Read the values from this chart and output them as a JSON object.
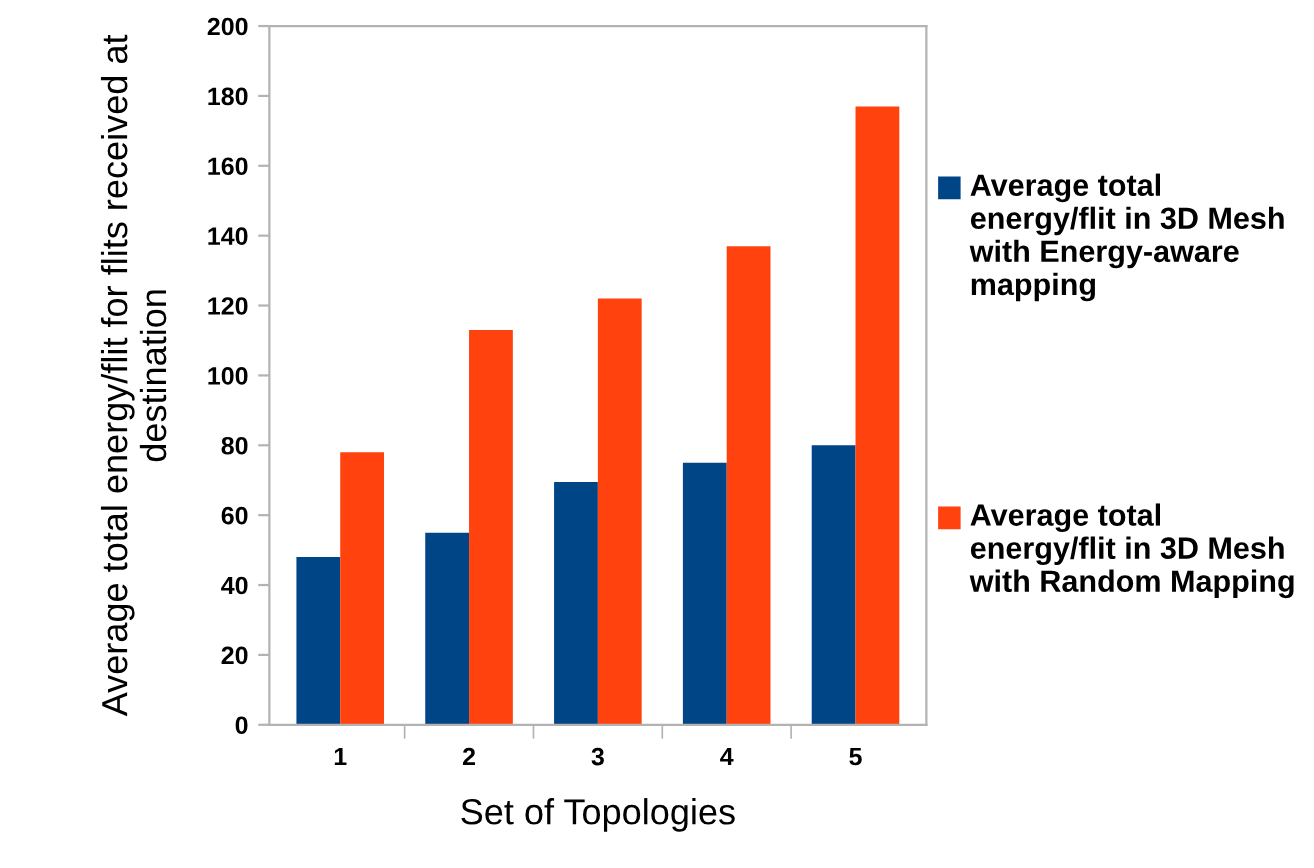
{
  "chart_data": {
    "type": "bar",
    "xlabel": "Set of Topologies",
    "ylabel": "Average total energy/flit for flits received at destination",
    "categories": [
      "1",
      "2",
      "3",
      "4",
      "5"
    ],
    "series": [
      {
        "name": "Average total energy/flit in 3D Mesh with Energy-aware mapping",
        "color": "#004586",
        "values": [
          48,
          55,
          69.5,
          75,
          80
        ]
      },
      {
        "name": "Average total energy/flit in 3D Mesh with Random Mapping",
        "color": "#ff420e",
        "values": [
          78,
          113,
          122,
          137,
          177
        ]
      }
    ],
    "ylim": [
      0,
      200
    ],
    "yticks": [
      0,
      20,
      40,
      60,
      80,
      100,
      120,
      140,
      160,
      180,
      200
    ],
    "grid": false,
    "legend": "right"
  }
}
